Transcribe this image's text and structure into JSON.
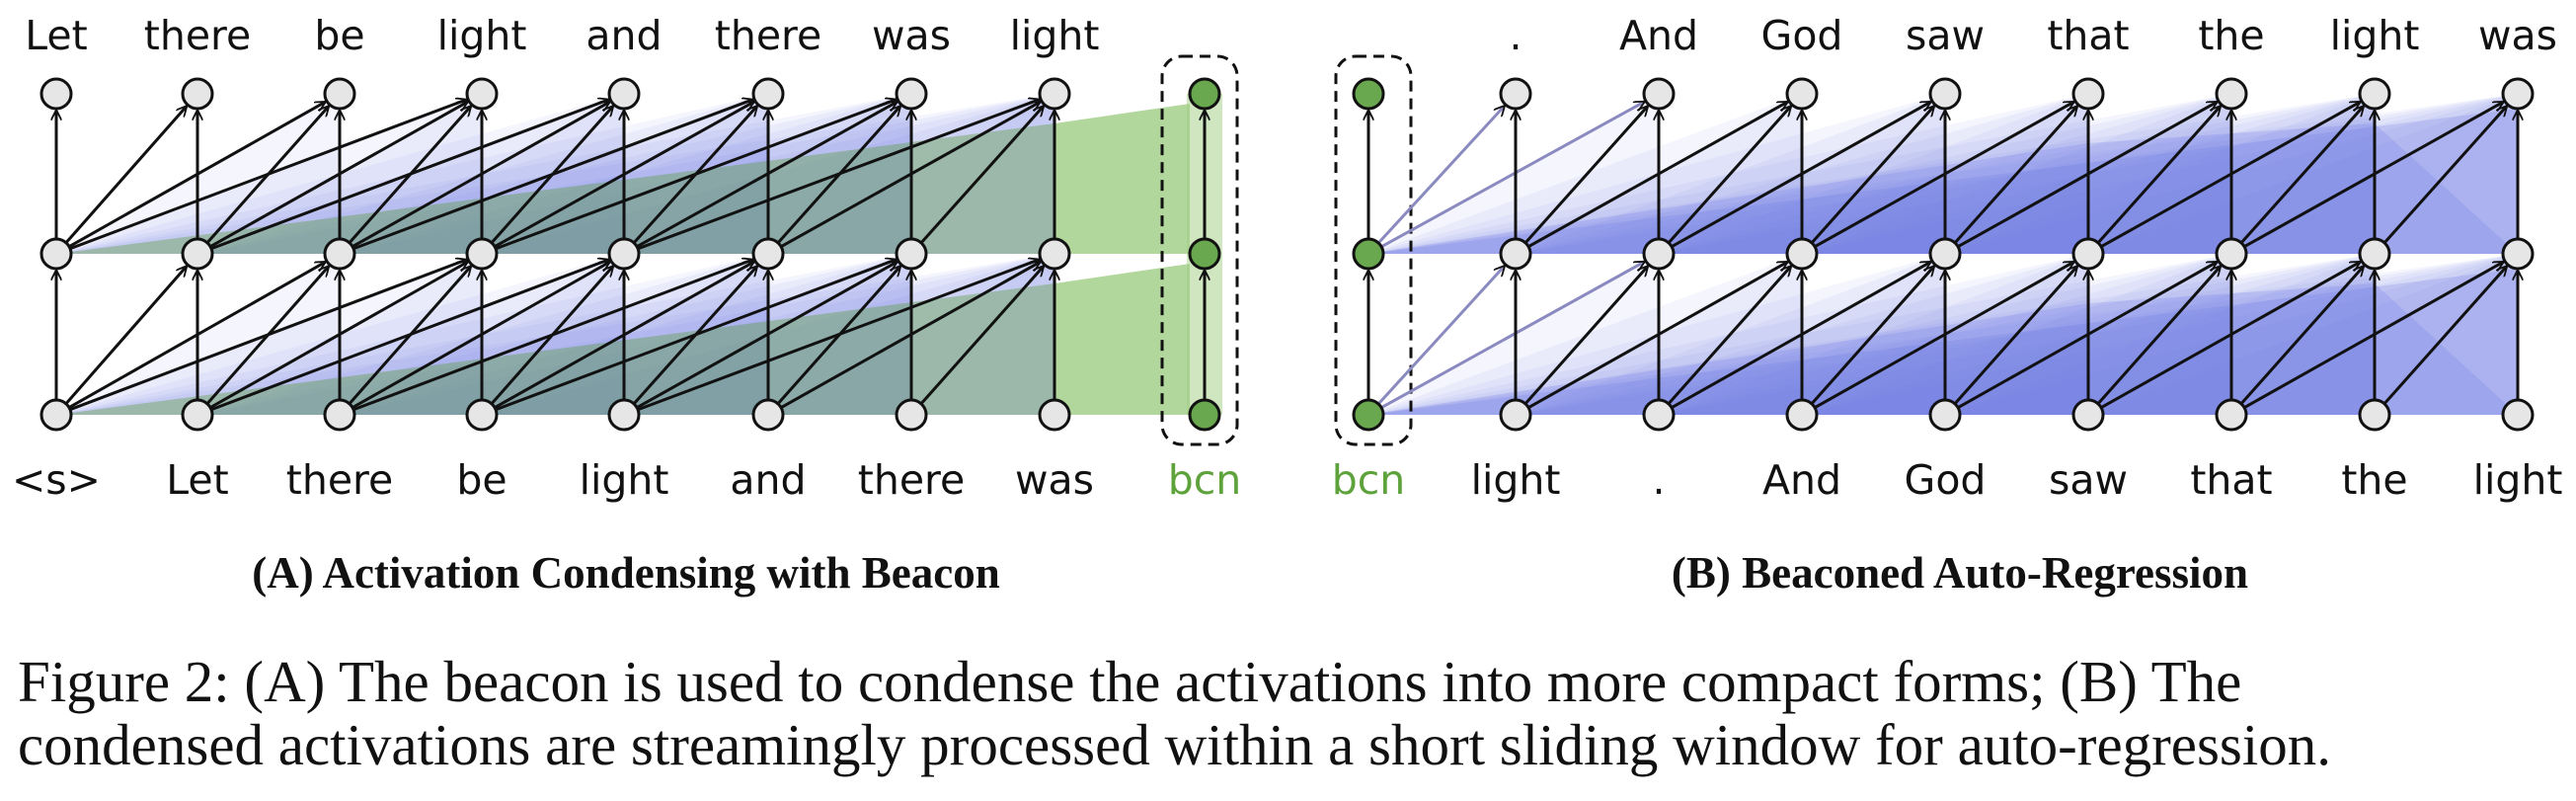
{
  "panel_a": {
    "top_tokens": [
      "Let",
      "there",
      "be",
      "light",
      "and",
      "there",
      "was",
      "light"
    ],
    "bottom_tokens": [
      "<s>",
      "Let",
      "there",
      "be",
      "light",
      "and",
      "there",
      "was"
    ],
    "beacon_label": "bcn",
    "title": "(A) Activation Condensing with Beacon"
  },
  "panel_b": {
    "top_tokens": [
      ".",
      "And",
      "God",
      "saw",
      "that",
      "the",
      "light",
      "was"
    ],
    "bottom_tokens": [
      "light",
      ".",
      "And",
      "God",
      "saw",
      "that",
      "the",
      "light"
    ],
    "beacon_label": "bcn",
    "title": "(B) Beaconed Auto-Regression"
  },
  "caption": {
    "line1": "Figure 2: (A) The beacon is used to condense the activations into more compact forms; (B) The",
    "line2": "condensed activations are streamingly processed within a short sliding window for auto-regression."
  },
  "colors": {
    "node_fill": "#e6e6e6",
    "beacon_fill": "#6aa84f",
    "attention_blue": "#6f74ea",
    "condense_green": "#9fcd84",
    "beacon_text": "#5ea23c"
  }
}
